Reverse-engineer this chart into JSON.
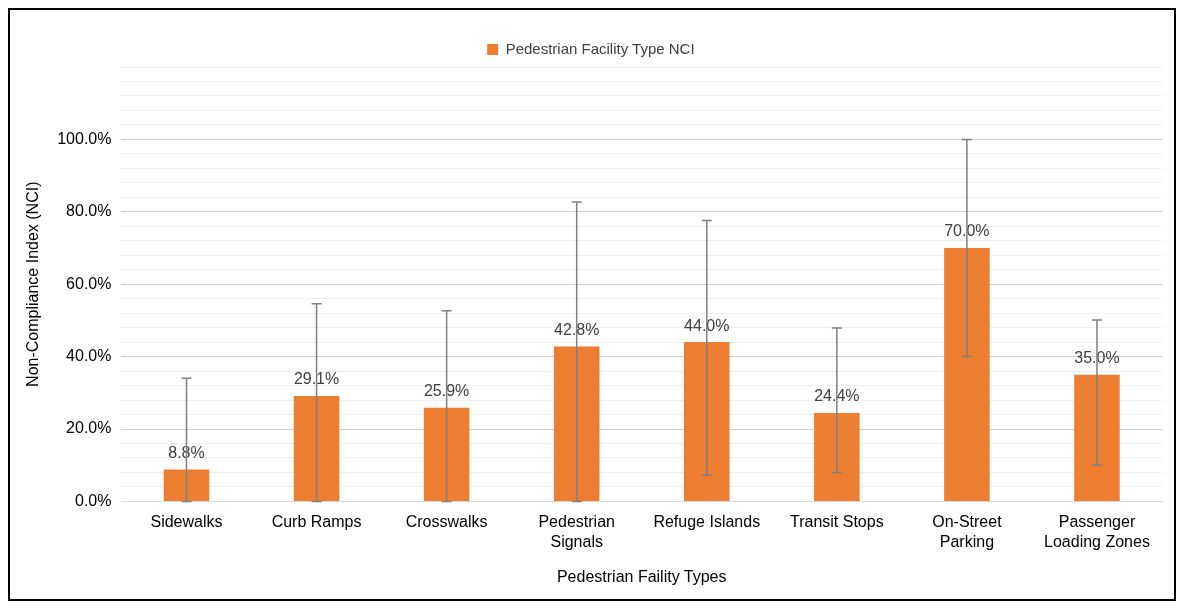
{
  "chart_data": {
    "type": "bar",
    "xlabel": "Pedestrian Faility Types",
    "ylabel": "Non-Compliance Index (NCI)",
    "categories": [
      "Sidewalks",
      "Curb Ramps",
      "Crosswalks",
      "Pedestrian Signals",
      "Refuge Islands",
      "Transit Stops",
      "On-Street Parking",
      "Passenger Loading Zones"
    ],
    "series": [
      {
        "name": "Pedestrian Facility Type NCI",
        "color": "#ed7d31",
        "values": [
          8.8,
          29.1,
          25.9,
          42.8,
          44.0,
          24.4,
          70.0,
          35.0
        ],
        "errors": [
          [
            0,
            34
          ],
          [
            0,
            54.6
          ],
          [
            0,
            52.7
          ],
          [
            0,
            82.7
          ],
          [
            7.2,
            77.6
          ],
          [
            8.0,
            47.9
          ],
          [
            40,
            100
          ],
          [
            10,
            50.1
          ]
        ],
        "value_labels": [
          "8.8%",
          "29.1%",
          "25.9%",
          "42.8%",
          "44.0%",
          "24.4%",
          "70.0%",
          "35.0%"
        ]
      }
    ],
    "ylim": [
      0,
      120
    ],
    "yticks": [
      {
        "value": 0,
        "label": "0.0%"
      },
      {
        "value": 4,
        "label": null
      },
      {
        "value": 8,
        "label": null
      },
      {
        "value": 12,
        "label": null
      },
      {
        "value": 16,
        "label": null
      },
      {
        "value": 20,
        "label": "20.0%"
      },
      {
        "value": 24,
        "label": null
      },
      {
        "value": 28,
        "label": null
      },
      {
        "value": 32,
        "label": null
      },
      {
        "value": 36,
        "label": null
      },
      {
        "value": 40,
        "label": "40.0%"
      },
      {
        "value": 44,
        "label": null
      },
      {
        "value": 48,
        "label": null
      },
      {
        "value": 52,
        "label": null
      },
      {
        "value": 56,
        "label": null
      },
      {
        "value": 60,
        "label": "60.0%"
      },
      {
        "value": 64,
        "label": null
      },
      {
        "value": 68,
        "label": null
      },
      {
        "value": 72,
        "label": null
      },
      {
        "value": 76,
        "label": null
      },
      {
        "value": 80,
        "label": "80.0%"
      },
      {
        "value": 84,
        "label": null
      },
      {
        "value": 88,
        "label": null
      },
      {
        "value": 92,
        "label": null
      },
      {
        "value": 96,
        "label": null
      },
      {
        "value": 100,
        "label": "100.0%"
      },
      {
        "value": 104,
        "label": null
      },
      {
        "value": 108,
        "label": null
      },
      {
        "value": 112,
        "label": null
      },
      {
        "value": 116,
        "label": null
      },
      {
        "value": 120,
        "label": null
      }
    ],
    "grid": "y",
    "legend": "top"
  }
}
